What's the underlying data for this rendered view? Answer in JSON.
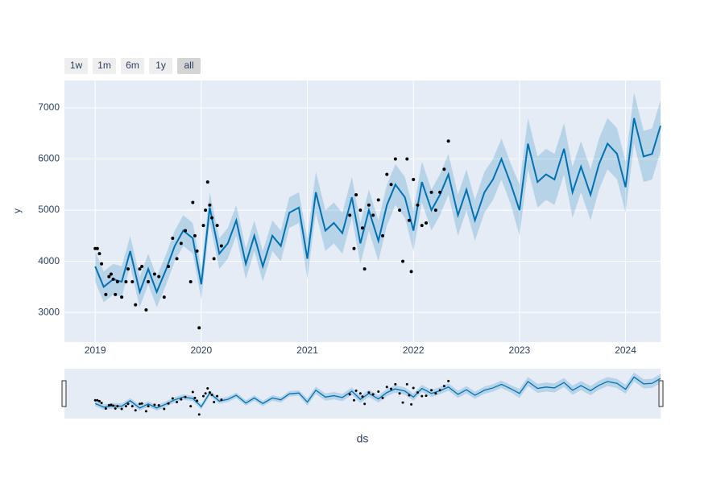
{
  "chart_data": {
    "type": "line",
    "x_label": "ds",
    "y_label": "y",
    "range_buttons": [
      "1w",
      "1m",
      "6m",
      "1y",
      "all"
    ],
    "active_button": 4,
    "xlim": [
      2018.71,
      2024.33
    ],
    "xticks": [
      2019,
      2020,
      2021,
      2022,
      2023,
      2024
    ],
    "ylim": [
      2420,
      7535
    ],
    "yticks": [
      3000,
      4000,
      5000,
      6000,
      7000
    ],
    "grid": true,
    "x": [
      2019.0,
      2019.08,
      2019.17,
      2019.25,
      2019.33,
      2019.42,
      2019.5,
      2019.58,
      2019.67,
      2019.75,
      2019.83,
      2019.92,
      2020.0,
      2020.08,
      2020.17,
      2020.25,
      2020.33,
      2020.42,
      2020.5,
      2020.58,
      2020.67,
      2020.75,
      2020.83,
      2020.92,
      2021.0,
      2021.08,
      2021.17,
      2021.25,
      2021.33,
      2021.42,
      2021.5,
      2021.58,
      2021.67,
      2021.75,
      2021.83,
      2021.92,
      2022.0,
      2022.08,
      2022.17,
      2022.25,
      2022.33,
      2022.42,
      2022.5,
      2022.58,
      2022.67,
      2022.75,
      2022.83,
      2022.92,
      2023.0,
      2023.08,
      2023.17,
      2023.25,
      2023.33,
      2023.42,
      2023.5,
      2023.58,
      2023.67,
      2023.75,
      2023.83,
      2023.92,
      2024.0,
      2024.08,
      2024.17,
      2024.25,
      2024.33
    ],
    "forecast": {
      "color": "#0072b2",
      "values": [
        3900,
        3500,
        3650,
        3600,
        4200,
        3400,
        3850,
        3400,
        3850,
        4300,
        4600,
        4450,
        3550,
        5050,
        4150,
        4350,
        4800,
        3950,
        4500,
        3900,
        4500,
        4300,
        4950,
        5050,
        4050,
        5350,
        4600,
        4750,
        4550,
        5250,
        4350,
        5000,
        4400,
        5100,
        5500,
        5250,
        4600,
        5550,
        5000,
        5300,
        5700,
        4900,
        5400,
        4800,
        5350,
        5600,
        6000,
        5500,
        5000,
        6300,
        5550,
        5700,
        5600,
        6200,
        5350,
        5850,
        5300,
        5900,
        6300,
        6100,
        5450,
        6800,
        6050,
        6100,
        6650
      ]
    },
    "band": {
      "color": "rgba(0,114,178,0.2)",
      "lower": [
        3600,
        3200,
        3350,
        3300,
        3900,
        3100,
        3550,
        3100,
        3550,
        4000,
        4300,
        4150,
        3250,
        4750,
        3850,
        4050,
        4500,
        3650,
        4200,
        3600,
        4200,
        4000,
        4650,
        4750,
        3650,
        4950,
        4200,
        4350,
        4150,
        4850,
        3950,
        4600,
        4000,
        4700,
        5100,
        4850,
        4200,
        5150,
        4600,
        4900,
        5300,
        4500,
        5000,
        4400,
        4950,
        5200,
        5600,
        5100,
        4500,
        5800,
        5050,
        5200,
        5100,
        5700,
        4850,
        5350,
        4800,
        5400,
        5800,
        5600,
        4950,
        6300,
        5550,
        5600,
        6150
      ],
      "upper": [
        4200,
        3800,
        3950,
        3900,
        4500,
        3700,
        4150,
        3700,
        4150,
        4600,
        4900,
        4750,
        3850,
        5350,
        4450,
        4650,
        5100,
        4250,
        4800,
        4200,
        4800,
        4600,
        5250,
        5350,
        4450,
        5750,
        5000,
        5150,
        4950,
        5650,
        4750,
        5400,
        4800,
        5500,
        5900,
        5650,
        5000,
        5950,
        5400,
        5700,
        6100,
        5300,
        5800,
        5200,
        5750,
        6000,
        6400,
        5900,
        5500,
        6800,
        6050,
        6200,
        6100,
        6700,
        5850,
        6350,
        5800,
        6400,
        6800,
        6600,
        5950,
        7300,
        6550,
        6600,
        7150
      ]
    },
    "actual": {
      "color": "#000000",
      "x": [
        2019.0,
        2019.02,
        2019.04,
        2019.06,
        2019.1,
        2019.13,
        2019.15,
        2019.17,
        2019.19,
        2019.21,
        2019.25,
        2019.29,
        2019.31,
        2019.35,
        2019.38,
        2019.42,
        2019.44,
        2019.48,
        2019.5,
        2019.56,
        2019.6,
        2019.65,
        2019.69,
        2019.73,
        2019.77,
        2019.81,
        2019.85,
        2019.9,
        2019.92,
        2019.94,
        2019.96,
        2019.98,
        2020.02,
        2020.04,
        2020.06,
        2020.08,
        2020.1,
        2020.12,
        2020.15,
        2020.19,
        2021.4,
        2021.44,
        2021.46,
        2021.5,
        2021.52,
        2021.54,
        2021.58,
        2021.62,
        2021.67,
        2021.71,
        2021.75,
        2021.79,
        2021.83,
        2021.87,
        2021.9,
        2021.94,
        2021.96,
        2021.98,
        2022.0,
        2022.04,
        2022.08,
        2022.12,
        2022.17,
        2022.21,
        2022.25,
        2022.29,
        2022.33
      ],
      "values": [
        4250,
        4250,
        4150,
        3950,
        3350,
        3700,
        3750,
        3650,
        3350,
        3600,
        3300,
        3600,
        3850,
        3600,
        3150,
        3850,
        3900,
        3050,
        3600,
        3750,
        3700,
        3300,
        3900,
        4450,
        4050,
        4350,
        4600,
        3600,
        5150,
        4500,
        4200,
        2700,
        4700,
        5000,
        5550,
        5100,
        4850,
        4050,
        4700,
        4300,
        4900,
        4250,
        5300,
        5000,
        4650,
        3850,
        5100,
        4900,
        5200,
        4500,
        5700,
        5500,
        6000,
        5000,
        4000,
        6000,
        4800,
        3800,
        5600,
        5100,
        4700,
        4750,
        5350,
        5000,
        5350,
        5800,
        6350
      ]
    }
  }
}
